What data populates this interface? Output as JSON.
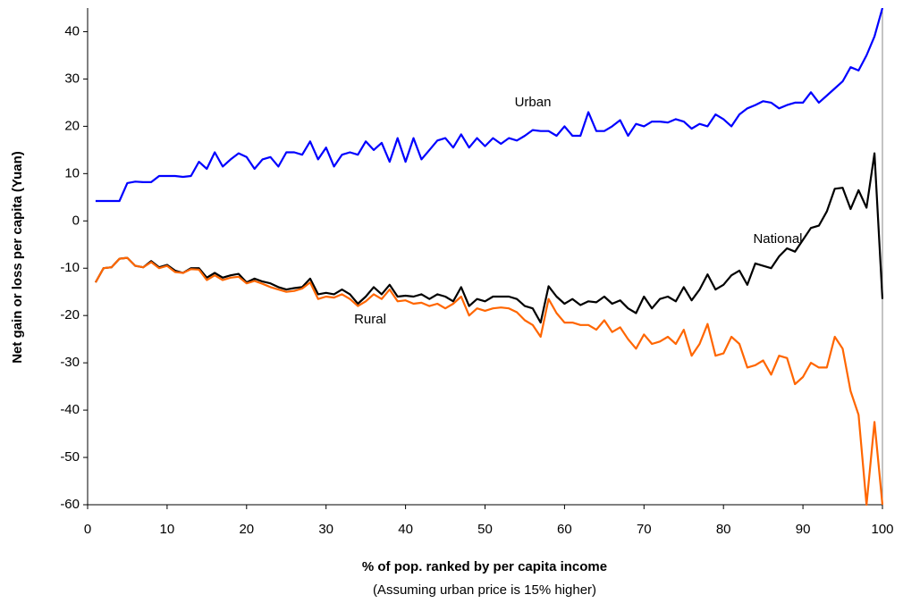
{
  "chart_data": {
    "type": "line",
    "y_label": "Net gain or loss per capita (Yuan)",
    "x_label": "% of pop. ranked by per capita income",
    "subtitle": "(Assuming urban price is 15% higher)",
    "x": [
      1,
      2,
      3,
      4,
      5,
      6,
      7,
      8,
      9,
      10,
      11,
      12,
      13,
      14,
      15,
      16,
      17,
      18,
      19,
      20,
      21,
      22,
      23,
      24,
      25,
      26,
      27,
      28,
      29,
      30,
      31,
      32,
      33,
      34,
      35,
      36,
      37,
      38,
      39,
      40,
      41,
      42,
      43,
      44,
      45,
      46,
      47,
      48,
      49,
      50,
      51,
      52,
      53,
      54,
      55,
      56,
      57,
      58,
      59,
      60,
      61,
      62,
      63,
      64,
      65,
      66,
      67,
      68,
      69,
      70,
      71,
      72,
      73,
      74,
      75,
      76,
      77,
      78,
      79,
      80,
      81,
      82,
      83,
      84,
      85,
      86,
      87,
      88,
      89,
      90,
      91,
      92,
      93,
      94,
      95,
      96,
      97,
      98,
      99,
      100
    ],
    "series": [
      {
        "name": "Urban",
        "color": "#0000ff",
        "values": [
          4.2,
          4.2,
          4.2,
          4.2,
          8,
          8.3,
          8.2,
          8.2,
          9.5,
          9.5,
          9.5,
          9.3,
          9.5,
          12.5,
          11,
          14.5,
          11.5,
          13,
          14.3,
          13.5,
          11,
          13,
          13.5,
          11.5,
          14.5,
          14.5,
          14,
          16.8,
          13,
          15.5,
          11.5,
          14,
          14.5,
          14,
          16.8,
          15,
          16.5,
          12.5,
          17.5,
          12.5,
          17.5,
          13,
          15,
          17,
          17.5,
          15.5,
          18.3,
          15.5,
          17.5,
          15.8,
          17.5,
          16.3,
          17.5,
          17,
          18,
          19.2,
          19,
          19,
          18,
          20,
          18,
          18,
          23,
          19,
          19,
          20,
          21.3,
          18,
          20.5,
          20,
          21,
          21,
          20.8,
          21.5,
          21,
          19.5,
          20.5,
          20,
          22.5,
          21.5,
          20,
          22.5,
          23.8,
          24.5,
          25.3,
          25,
          23.8,
          24.5,
          25,
          25,
          27.2,
          25,
          26.5,
          28,
          29.5,
          32.5,
          31.8,
          35,
          39,
          45
        ]
      },
      {
        "name": "National",
        "color": "#000000",
        "values": [
          -13,
          -10,
          -9.8,
          -8,
          -7.8,
          -9.5,
          -9.8,
          -8.5,
          -9.8,
          -9.3,
          -10.5,
          -11,
          -10,
          -10,
          -12,
          -11,
          -12,
          -11.5,
          -11.2,
          -13,
          -12.2,
          -12.8,
          -13.2,
          -14,
          -14.5,
          -14.2,
          -14,
          -12.2,
          -15.5,
          -15.2,
          -15.5,
          -14.5,
          -15.5,
          -17.5,
          -16,
          -14,
          -15.5,
          -13.5,
          -16,
          -15.8,
          -16,
          -15.5,
          -16.5,
          -15.5,
          -16,
          -17,
          -14,
          -18,
          -16.5,
          -17,
          -16,
          -16,
          -16,
          -16.5,
          -18,
          -18.5,
          -21.5,
          -13.8,
          -16,
          -17.5,
          -16.5,
          -17.8,
          -17,
          -17.2,
          -16,
          -17.5,
          -16.8,
          -18.5,
          -19.5,
          -16,
          -18.5,
          -16.5,
          -16,
          -17,
          -14,
          -16.8,
          -14.5,
          -11.3,
          -14.5,
          -13.5,
          -11.5,
          -10.5,
          -13.5,
          -9,
          -9.5,
          -10,
          -7.5,
          -5.8,
          -6.5,
          -4,
          -1.5,
          -1,
          2,
          6.8,
          7,
          2.5,
          6.5,
          2.8,
          14.3,
          -16.5
        ]
      },
      {
        "name": "Rural",
        "color": "#ff6600",
        "values": [
          -13,
          -10,
          -9.8,
          -8,
          -7.8,
          -9.5,
          -9.8,
          -8.7,
          -10,
          -9.5,
          -10.8,
          -11,
          -10.2,
          -10.3,
          -12.5,
          -11.5,
          -12.5,
          -12,
          -11.8,
          -13.2,
          -12.7,
          -13.3,
          -14,
          -14.5,
          -15,
          -14.8,
          -14.3,
          -13,
          -16.5,
          -16,
          -16.2,
          -15.5,
          -16.5,
          -18,
          -17,
          -15.5,
          -16.5,
          -14.5,
          -17,
          -16.8,
          -17.5,
          -17.3,
          -18,
          -17.5,
          -18.5,
          -17.5,
          -16,
          -20,
          -18.5,
          -19,
          -18.5,
          -18.3,
          -18.5,
          -19.3,
          -21,
          -22,
          -24.5,
          -16.5,
          -19.5,
          -21.5,
          -21.5,
          -22,
          -22,
          -23,
          -21,
          -23.5,
          -22.5,
          -25,
          -27,
          -24,
          -26,
          -25.5,
          -24.5,
          -26,
          -23,
          -28.5,
          -26,
          -21.8,
          -28.5,
          -28,
          -24.5,
          -26,
          -31,
          -30.5,
          -29.5,
          -32.5,
          -28.5,
          -29,
          -34.5,
          -33,
          -30,
          -31,
          -31,
          -24.5,
          -27,
          -36,
          -41,
          -60,
          -42.5,
          -60
        ]
      }
    ],
    "xlim": [
      0,
      100
    ],
    "xticks": [
      0,
      10,
      20,
      30,
      40,
      50,
      60,
      70,
      80,
      90,
      100
    ],
    "ylim": [
      -60,
      45
    ],
    "yticks": [
      -60,
      -50,
      -40,
      -30,
      -20,
      -10,
      0,
      10,
      20,
      30,
      40
    ]
  }
}
